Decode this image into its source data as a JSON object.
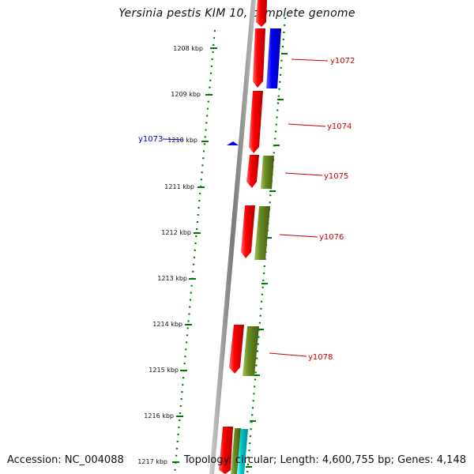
{
  "title": "Yersinia pestis KIM 10, complete genome",
  "footer": {
    "accession": "Accession: NC_004088",
    "summary": "Topology: circular; Length: 4,600,755 bp; Genes: 4,148"
  },
  "ticks": [
    "1208 kbp",
    "1209 kbp",
    "1210 kbp",
    "1211 kbp",
    "1212 kbp",
    "1213 kbp",
    "1214 kbp",
    "1215 kbp",
    "1216 kbp",
    "1217 kbp"
  ],
  "left_labels": [
    {
      "text": "y1073",
      "color": "#0000cc"
    }
  ],
  "right_labels": [
    {
      "text": "y1072",
      "color": "#cc0000"
    },
    {
      "text": "y1074",
      "color": "#cc0000"
    },
    {
      "text": "y1075",
      "color": "#cc0000"
    },
    {
      "text": "y1076",
      "color": "#cc0000"
    },
    {
      "text": "y1078",
      "color": "#cc0000"
    }
  ],
  "colors": {
    "gene_red": "#ff0000",
    "gene_blue": "#0000ff",
    "gene_olive": "#6b8e23",
    "gene_cyan": "#00cccc",
    "tick_green": "#007700",
    "axis_gray": "#888888"
  }
}
